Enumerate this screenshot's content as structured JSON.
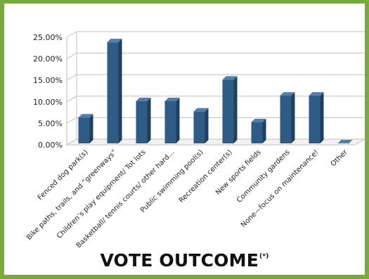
{
  "chart_data": {
    "type": "bar",
    "style": "3d-column",
    "title": "VOTE OUTCOME",
    "title_note": "(*)",
    "categories": [
      "Fenced dog park(s)",
      "Bike paths, trails, and “greenways”",
      "Children’s play equipment/ Tot lots",
      "Basketball/ tennis courts/ other hard…",
      "Public swimming pool(s)",
      "Recreation center(s)",
      "New sports fields",
      "Community gardens",
      "None—focus on maintenance!",
      "Other"
    ],
    "series": [
      {
        "values": [
          6.0,
          23.5,
          9.8,
          9.8,
          7.4,
          14.8,
          4.9,
          11.1,
          11.1,
          0.0
        ]
      }
    ],
    "ylim": [
      0,
      25
    ],
    "yticks": [
      "0.00%",
      "5.00%",
      "10.00%",
      "15.00%",
      "20.00%",
      "25.00%"
    ],
    "value_format": "percent",
    "grid": true,
    "legend": "none",
    "colors": {
      "bar_front": "#2f5c87",
      "bar_side": "#1e3f60",
      "bar_top": "#4f7faa",
      "grid": "#bfbfbf",
      "frame": "#77a93d"
    }
  }
}
